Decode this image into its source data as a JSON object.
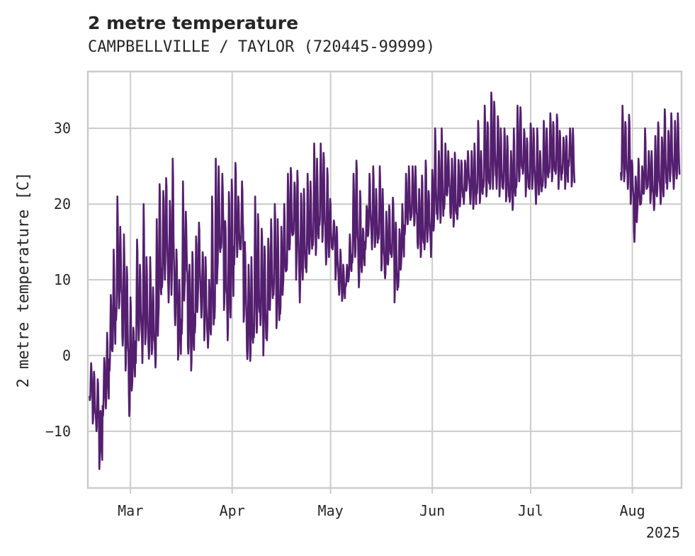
{
  "chart_data": {
    "type": "line",
    "title": "2 metre temperature",
    "subtitle": "CAMPBELLVILLE / TAYLOR (720445-99999)",
    "ylabel": "2 metre temperature [C]",
    "xlabel": "",
    "year_label": "2025",
    "ylim": [
      -17.5,
      37.5
    ],
    "xlim_day": [
      -13,
      168
    ],
    "y_ticks": [
      -10,
      0,
      10,
      20,
      30
    ],
    "x_ticks": [
      {
        "label": "Mar",
        "day": 0
      },
      {
        "label": "Apr",
        "day": 31
      },
      {
        "label": "May",
        "day": 61
      },
      {
        "label": "Jun",
        "day": 92
      },
      {
        "label": "Jul",
        "day": 122
      },
      {
        "label": "Aug",
        "day": 153
      }
    ],
    "grid": true,
    "line_color": "#541f6e",
    "day_origin": "2025-03-01",
    "resolution": "3-hourly; values listed as daily min/max pairs",
    "series": [
      {
        "name": "2 metre temperature",
        "segments": [
          {
            "start_day": -12.5,
            "daily_min_max": [
              [
                -6,
                -1
              ],
              [
                -9,
                -2
              ],
              [
                -10,
                -3
              ],
              [
                -15,
                -7
              ],
              [
                -8,
                0
              ],
              [
                -7,
                3
              ],
              [
                -2,
                8
              ],
              [
                0,
                14
              ],
              [
                4,
                21
              ],
              [
                6,
                17
              ],
              [
                1,
                16
              ],
              [
                -2,
                12
              ],
              [
                -8,
                8
              ],
              [
                -4,
                4
              ],
              [
                -1,
                16
              ],
              [
                2,
                12
              ],
              [
                -1,
                20
              ],
              [
                1,
                13
              ],
              [
                -1,
                13
              ],
              [
                0,
                9
              ],
              [
                -2,
                18
              ],
              [
                5,
                23
              ],
              [
                9,
                22
              ],
              [
                10,
                24
              ],
              [
                7,
                21
              ],
              [
                8,
                26
              ],
              [
                4,
                14
              ],
              [
                -1,
                10
              ],
              [
                2,
                23
              ],
              [
                9,
                19
              ],
              [
                0,
                12
              ],
              [
                -2,
                14
              ],
              [
                3,
                16
              ],
              [
                7,
                18
              ],
              [
                5,
                14
              ],
              [
                2,
                13
              ],
              [
                1,
                10
              ],
              [
                2,
                21
              ],
              [
                4,
                26
              ],
              [
                11,
                25
              ],
              [
                14,
                24
              ],
              [
                6,
                18
              ],
              [
                2,
                22
              ],
              [
                5,
                24
              ],
              [
                12,
                26
              ],
              [
                13,
                21
              ],
              [
                14,
                23
              ],
              [
                4,
                15
              ],
              [
                -1,
                12
              ],
              [
                -1,
                13
              ],
              [
                2,
                21
              ],
              [
                3,
                19
              ],
              [
                4,
                17
              ],
              [
                0,
                15
              ],
              [
                2,
                16
              ],
              [
                6,
                18
              ],
              [
                8,
                20
              ],
              [
                3,
                18
              ],
              [
                5,
                17
              ],
              [
                9,
                20
              ],
              [
                11,
                24
              ],
              [
                14,
                25
              ],
              [
                16,
                23
              ],
              [
                10,
                25
              ],
              [
                7,
                22
              ],
              [
                10,
                22
              ],
              [
                11,
                24
              ],
              [
                13,
                23
              ],
              [
                14,
                28
              ],
              [
                13,
                26
              ],
              [
                17,
                28
              ],
              [
                15,
                27
              ],
              [
                12,
                25
              ],
              [
                13,
                21
              ],
              [
                14,
                18
              ],
              [
                10,
                17
              ],
              [
                8,
                14
              ],
              [
                7,
                12
              ],
              [
                9,
                12
              ],
              [
                10,
                16
              ],
              [
                12,
                24
              ],
              [
                13,
                26
              ],
              [
                9,
                22
              ],
              [
                11,
                17
              ],
              [
                14,
                20
              ],
              [
                16,
                24
              ],
              [
                14,
                25
              ],
              [
                14,
                22
              ],
              [
                15,
                25
              ],
              [
                11,
                22
              ],
              [
                10,
                19
              ],
              [
                12,
                20
              ],
              [
                13,
                21
              ],
              [
                7,
                18
              ],
              [
                9,
                17
              ],
              [
                12,
                20
              ],
              [
                16,
                24
              ],
              [
                17,
                25
              ],
              [
                18,
                25
              ],
              [
                17,
                25
              ],
              [
                14,
                22
              ],
              [
                13,
                24
              ],
              [
                14,
                26
              ],
              [
                15,
                22
              ],
              [
                13,
                25
              ],
              [
                17,
                30
              ],
              [
                18,
                27
              ],
              [
                17,
                30
              ],
              [
                19,
                28
              ],
              [
                21,
                27
              ],
              [
                18,
                26
              ],
              [
                17,
                27
              ],
              [
                18,
                26
              ],
              [
                20,
                26
              ],
              [
                20,
                26
              ],
              [
                22,
                27
              ],
              [
                20,
                27
              ],
              [
                19,
                28
              ],
              [
                21,
                31
              ],
              [
                20,
                27
              ],
              [
                22,
                33
              ],
              [
                21,
                31
              ],
              [
                22,
                35
              ],
              [
                22,
                34
              ],
              [
                22,
                32
              ],
              [
                21,
                30
              ],
              [
                22,
                30
              ],
              [
                20,
                29
              ],
              [
                20,
                27
              ],
              [
                19,
                30
              ],
              [
                22,
                33
              ],
              [
                23,
                33
              ],
              [
                24,
                30
              ],
              [
                21,
                29
              ],
              [
                22,
                31
              ],
              [
                22,
                30
              ],
              [
                20,
                30
              ],
              [
                21,
                27
              ],
              [
                22,
                31
              ],
              [
                22,
                30
              ],
              [
                24,
                32
              ],
              [
                23,
                31
              ],
              [
                24,
                32
              ],
              [
                22,
                30
              ],
              [
                24,
                29
              ],
              [
                22,
                29
              ],
              [
                25,
                30
              ],
              [
                22,
                30
              ]
            ]
          },
          {
            "start_day": 149.5,
            "daily_min_max": [
              [
                23,
                33
              ],
              [
                23,
                31
              ],
              [
                22,
                32
              ],
              [
                20,
                26
              ],
              [
                15,
                24
              ],
              [
                19,
                26
              ],
              [
                20,
                25
              ],
              [
                21,
                30
              ],
              [
                22,
                27
              ],
              [
                20,
                27
              ],
              [
                19,
                29
              ],
              [
                21,
                31
              ],
              [
                20,
                29
              ],
              [
                21,
                33
              ],
              [
                22,
                30
              ],
              [
                23,
                32
              ],
              [
                22,
                31
              ],
              [
                23,
                32
              ]
            ]
          }
        ]
      }
    ]
  }
}
